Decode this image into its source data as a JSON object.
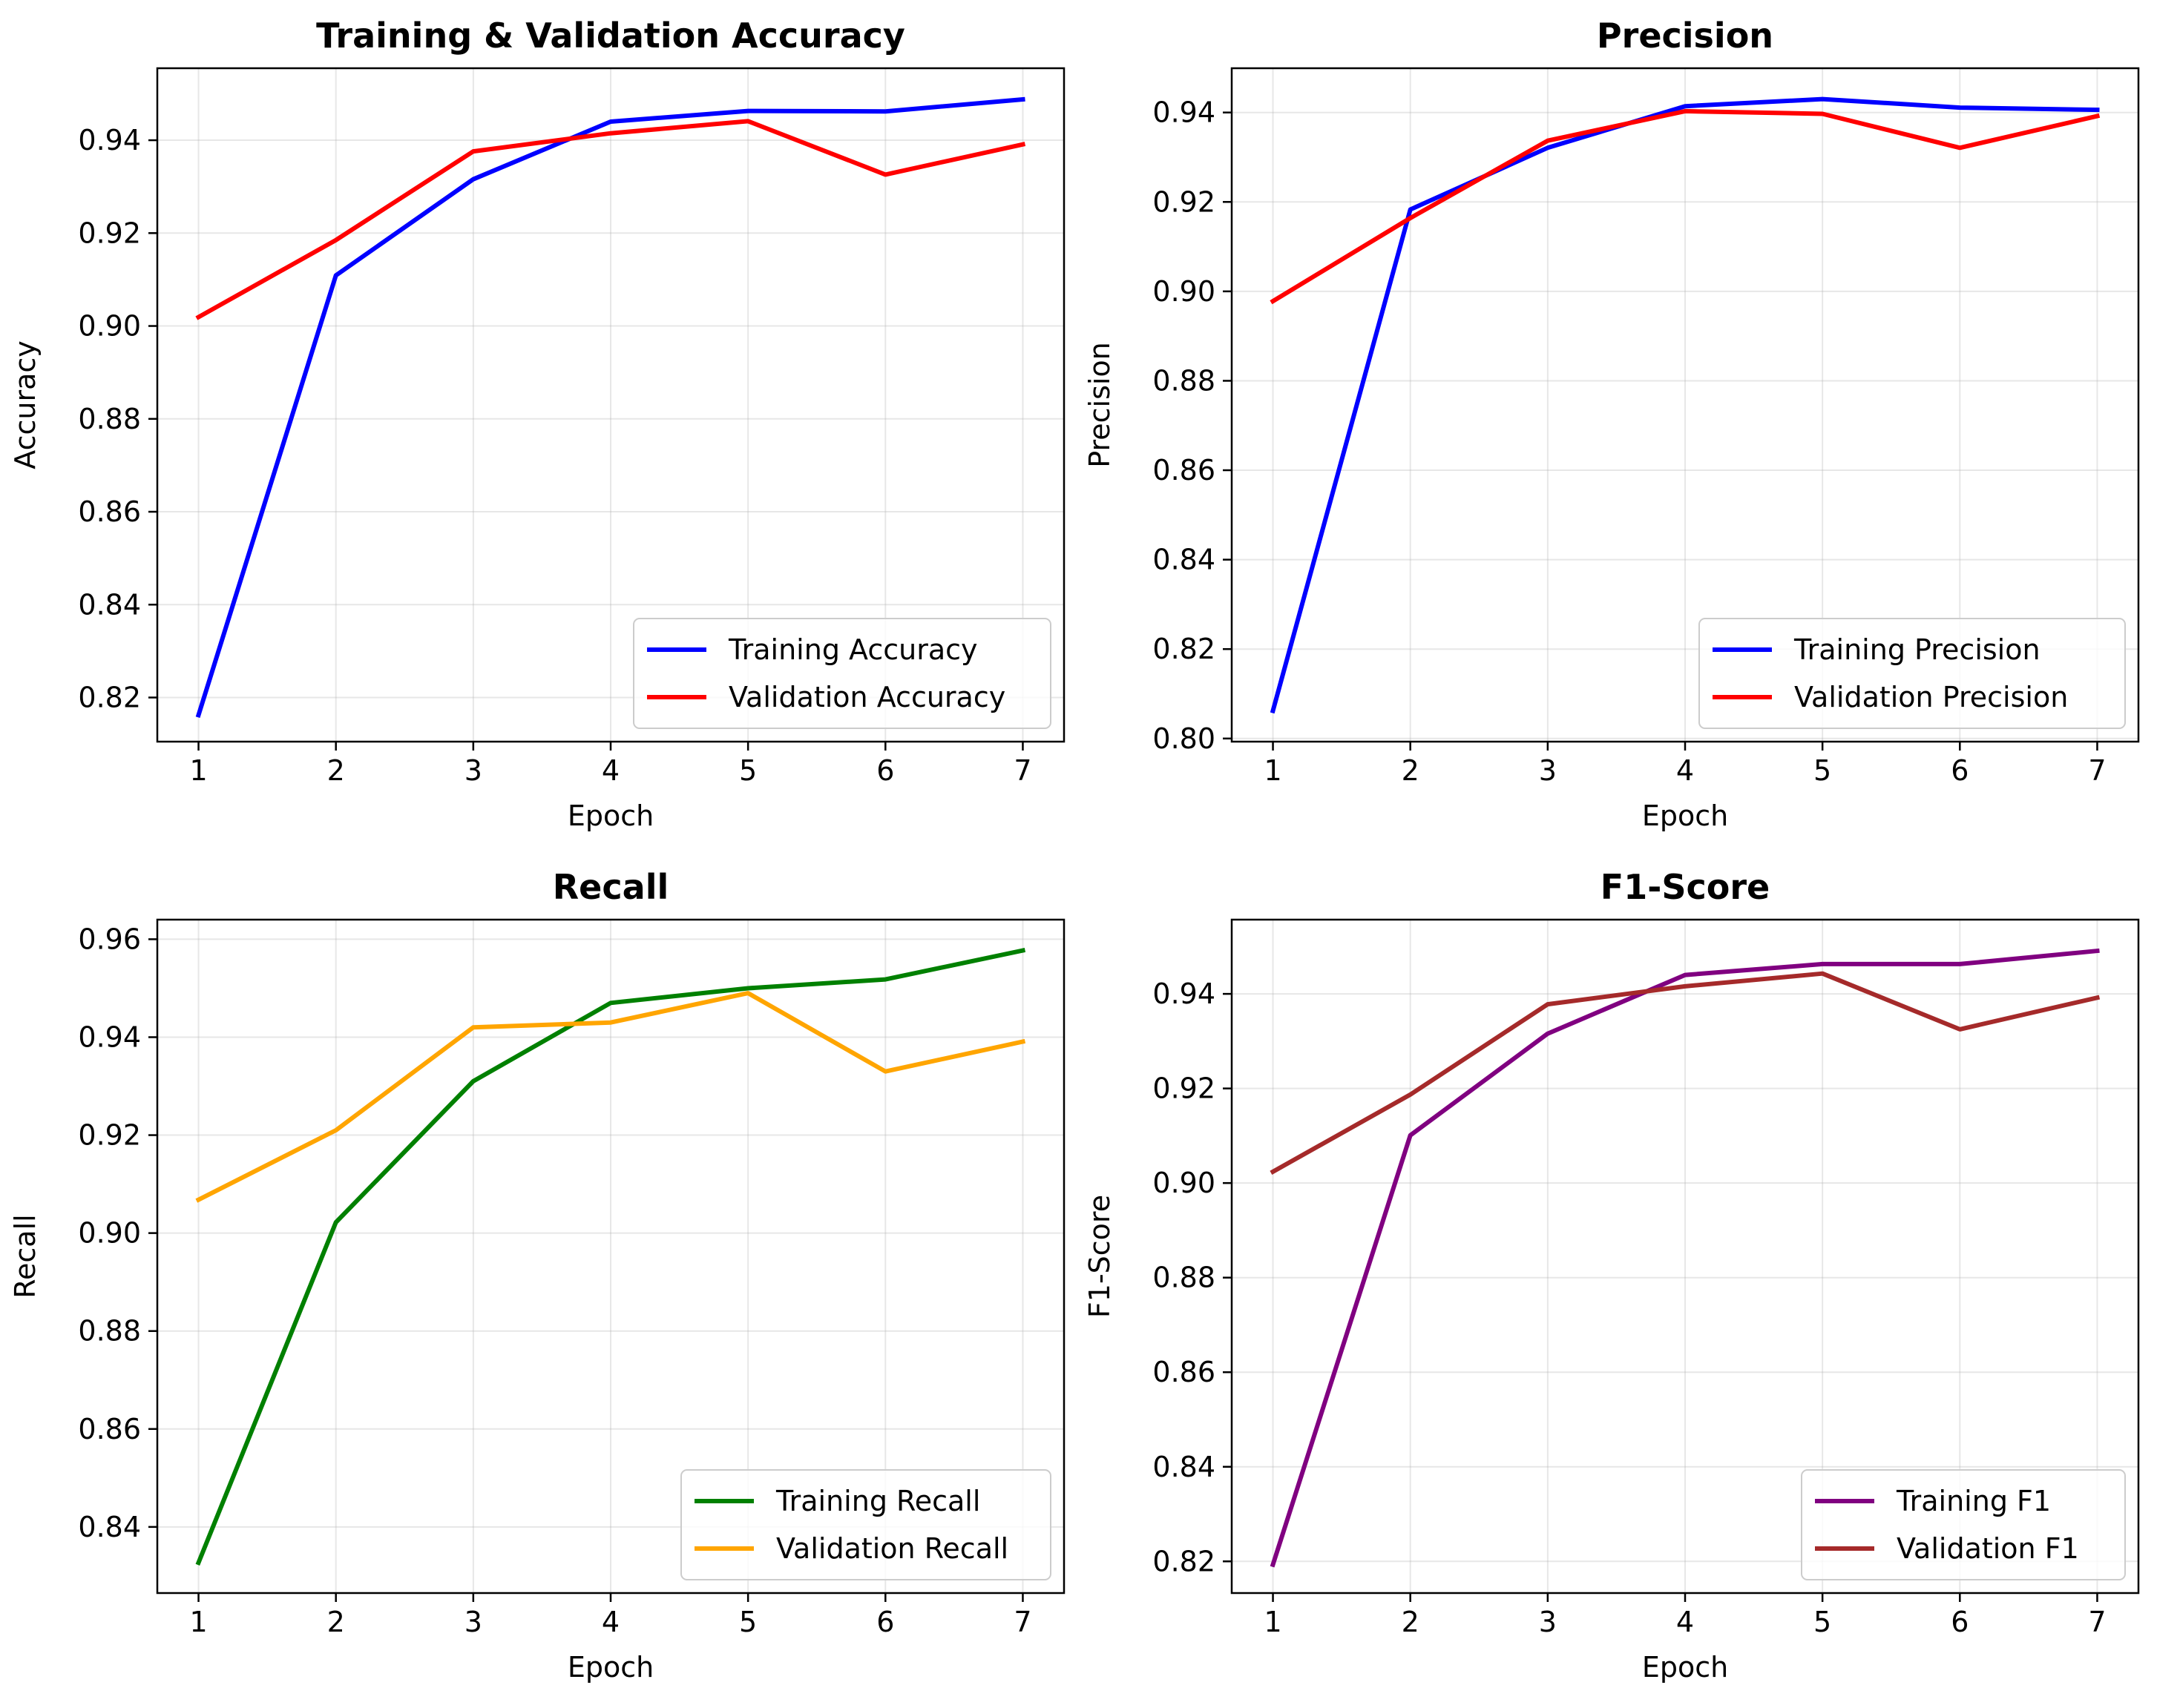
{
  "chart_data": [
    {
      "type": "line",
      "title": "Training & Validation Accuracy",
      "xlabel": "Epoch",
      "ylabel": "Accuracy",
      "x": [
        1,
        2,
        3,
        4,
        5,
        6,
        7
      ],
      "xlim": [
        0.7,
        7.3
      ],
      "ylim": [
        0.8105,
        0.9555
      ],
      "yticks": [
        0.82,
        0.84,
        0.86,
        0.88,
        0.9,
        0.92,
        0.94
      ],
      "ytick_labels": [
        "0.82",
        "0.84",
        "0.86",
        "0.88",
        "0.90",
        "0.92",
        "0.94"
      ],
      "grid": true,
      "legend_position": "lower-right",
      "series": [
        {
          "name": "Training Accuracy",
          "color": "#0000ff",
          "values": [
            0.8162,
            0.9109,
            0.9316,
            0.944,
            0.9463,
            0.9462,
            0.9488
          ]
        },
        {
          "name": "Validation Accuracy",
          "color": "#ff0000",
          "values": [
            0.9019,
            0.9185,
            0.9376,
            0.9415,
            0.9441,
            0.9326,
            0.9391
          ]
        }
      ]
    },
    {
      "type": "line",
      "title": "Precision",
      "xlabel": "Epoch",
      "ylabel": "Precision",
      "x": [
        1,
        2,
        3,
        4,
        5,
        6,
        7
      ],
      "xlim": [
        0.7,
        7.3
      ],
      "ylim": [
        0.7993,
        0.9499
      ],
      "yticks": [
        0.8,
        0.82,
        0.84,
        0.86,
        0.88,
        0.9,
        0.92,
        0.94
      ],
      "ytick_labels": [
        "0.80",
        "0.82",
        "0.84",
        "0.86",
        "0.88",
        "0.90",
        "0.92",
        "0.94"
      ],
      "grid": true,
      "legend_position": "lower-right",
      "series": [
        {
          "name": "Training Precision",
          "color": "#0000ff",
          "values": [
            0.8062,
            0.9183,
            0.9321,
            0.9414,
            0.943,
            0.9411,
            0.9406
          ]
        },
        {
          "name": "Validation Precision",
          "color": "#ff0000",
          "values": [
            0.8978,
            0.9164,
            0.9337,
            0.9403,
            0.9397,
            0.9321,
            0.9392
          ]
        }
      ]
    },
    {
      "type": "line",
      "title": "Recall",
      "xlabel": "Epoch",
      "ylabel": "Recall",
      "x": [
        1,
        2,
        3,
        4,
        5,
        6,
        7
      ],
      "xlim": [
        0.7,
        7.3
      ],
      "ylim": [
        0.8265,
        0.964
      ],
      "yticks": [
        0.84,
        0.86,
        0.88,
        0.9,
        0.92,
        0.94,
        0.96
      ],
      "ytick_labels": [
        "0.84",
        "0.86",
        "0.88",
        "0.90",
        "0.92",
        "0.94",
        "0.96"
      ],
      "grid": true,
      "legend_position": "lower-right",
      "series": [
        {
          "name": "Training Recall",
          "color": "#008000",
          "values": [
            0.8327,
            0.9022,
            0.931,
            0.947,
            0.95,
            0.9518,
            0.9577
          ]
        },
        {
          "name": "Validation Recall",
          "color": "#ffa500",
          "values": [
            0.9068,
            0.921,
            0.942,
            0.943,
            0.949,
            0.933,
            0.9391
          ]
        }
      ]
    },
    {
      "type": "line",
      "title": "F1-Score",
      "xlabel": "Epoch",
      "ylabel": "F1-Score",
      "x": [
        1,
        2,
        3,
        4,
        5,
        6,
        7
      ],
      "xlim": [
        0.7,
        7.3
      ],
      "ylim": [
        0.8133,
        0.9557
      ],
      "yticks": [
        0.82,
        0.84,
        0.86,
        0.88,
        0.9,
        0.92,
        0.94
      ],
      "ytick_labels": [
        "0.82",
        "0.84",
        "0.86",
        "0.88",
        "0.90",
        "0.92",
        "0.94"
      ],
      "grid": true,
      "legend_position": "lower-right",
      "series": [
        {
          "name": "Training F1",
          "color": "#800080",
          "values": [
            0.8193,
            0.9101,
            0.9316,
            0.944,
            0.9463,
            0.9463,
            0.9491
          ]
        },
        {
          "name": "Validation F1",
          "color": "#a52a2a",
          "values": [
            0.9024,
            0.9187,
            0.9378,
            0.9416,
            0.9443,
            0.9325,
            0.9392
          ]
        }
      ]
    }
  ]
}
